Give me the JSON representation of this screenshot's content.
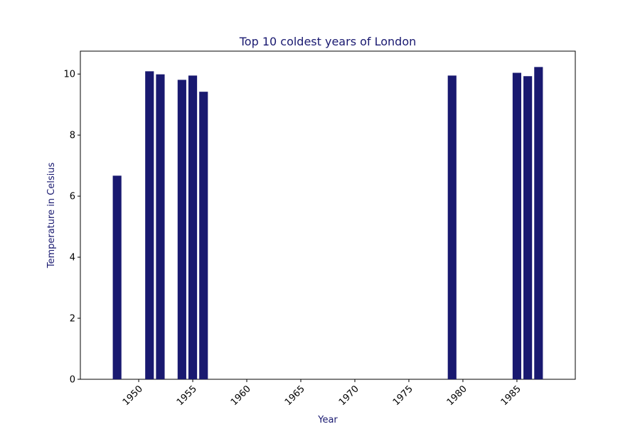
{
  "colors": {
    "bar": "#191970",
    "label_text": "#191970",
    "tick_text": "#000000",
    "axes": "#000000",
    "background": "#ffffff"
  },
  "chart_data": {
    "type": "bar",
    "title": "Top 10 coldest years of London",
    "xlabel": "Year",
    "ylabel": "Temperature in Celsius",
    "x": [
      1948,
      1951,
      1952,
      1954,
      1955,
      1956,
      1979,
      1985,
      1986,
      1987
    ],
    "values": [
      6.67,
      10.09,
      9.99,
      9.81,
      9.95,
      9.42,
      9.95,
      10.04,
      9.93,
      10.23
    ],
    "xlim": [
      1944.6,
      1990.4
    ],
    "ylim": [
      0,
      10.75
    ],
    "x_ticks": [
      1950,
      1955,
      1960,
      1965,
      1970,
      1975,
      1980,
      1985
    ],
    "x_tick_labels": [
      "1950",
      "1955",
      "1960",
      "1965",
      "1970",
      "1975",
      "1980",
      "1985"
    ],
    "y_ticks": [
      0,
      2,
      4,
      6,
      8,
      10
    ],
    "y_tick_labels": [
      "0",
      "2",
      "4",
      "6",
      "8",
      "10"
    ],
    "x_tick_rotation": 45,
    "grid": false,
    "legend": "none"
  }
}
